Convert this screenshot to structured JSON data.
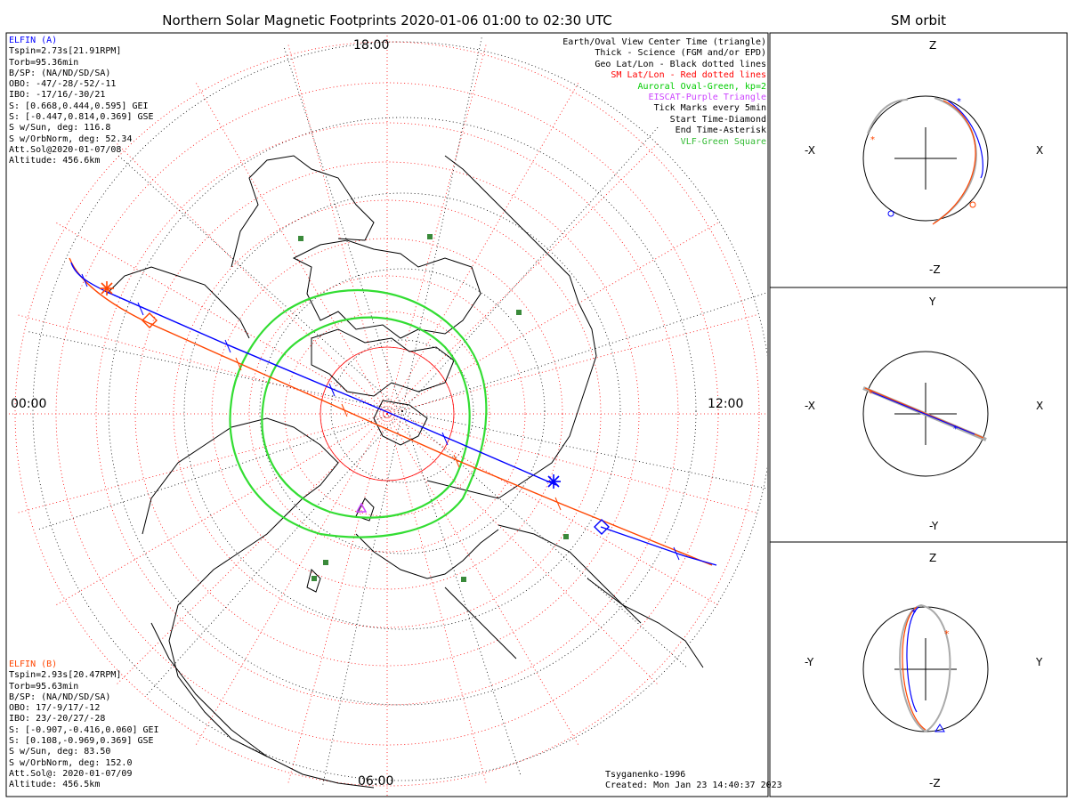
{
  "title": "Northern Solar Magnetic Footprints 2020-01-06 01:00 to 02:30 UTC",
  "orbit_title": "SM orbit",
  "hour_labels": {
    "top": "18:00",
    "left": "00:00",
    "right": "12:00",
    "bottom": "06:00"
  },
  "elfin_a": {
    "name": "ELFIN (A)",
    "color": "#0000ff",
    "lines": [
      "Tspin=2.73s[21.91RPM]",
      "Torb=95.36min",
      "B/SP: (NA/ND/SD/SA)",
      "OBO: -47/-28/-52/-11",
      "IBO: -17/16/-30/21",
      "S: [0.668,0.444,0.595] GEI",
      "S: [-0.447,0.814,0.369] GSE",
      "S w/Sun, deg: 116.8",
      "S w/OrbNorm, deg: 52.34",
      "Att.Sol@2020-01-07/08",
      "Altitude: 456.6km"
    ]
  },
  "elfin_b": {
    "name": "ELFIN (B)",
    "color": "#ff4500",
    "lines": [
      "Tspin=2.93s[20.47RPM]",
      "Torb=95.63min",
      "B/SP: (NA/ND/SD/SA)",
      "OBO: 17/-9/17/-12",
      "IBO: 23/-20/27/-28",
      "S: [-0.907,-0.416,0.060] GEI",
      "S: [0.108,-0.969,0.369] GSE",
      "S w/Sun, deg: 83.50",
      "S w/OrbNorm, deg: 152.0",
      "Att.Sol@: 2020-01-07/09",
      "Altitude: 456.5km"
    ]
  },
  "legend": [
    {
      "text": "Earth/Oval View Center Time (triangle)",
      "color": "#000000"
    },
    {
      "text": "Thick - Science (FGM and/or EPD)",
      "color": "#000000"
    },
    {
      "text": "Geo Lat/Lon - Black dotted lines",
      "color": "#000000"
    },
    {
      "text": "SM Lat/Lon - Red dotted lines",
      "color": "#ff0000"
    },
    {
      "text": "Auroral Oval-Green, kp=2",
      "color": "#00cc00"
    },
    {
      "text": "EISCAT-Purple Triangle",
      "color": "#cc44ff"
    },
    {
      "text": "Tick Marks every 5min",
      "color": "#000000"
    },
    {
      "text": "Start Time-Diamond",
      "color": "#000000"
    },
    {
      "text": "End Time-Asterisk",
      "color": "#000000"
    },
    {
      "text": "VLF-Green Square",
      "color": "#33bb33"
    }
  ],
  "credits": {
    "model": "Tsyganenko-1996",
    "created": "Created: Mon Jan 23 14:40:37 2023"
  },
  "orbit_panels": [
    {
      "top": "Z",
      "bottom": "-Z",
      "left": "-X",
      "right": "X"
    },
    {
      "top": "Y",
      "bottom": "-Y",
      "left": "-X",
      "right": "X"
    },
    {
      "top": "Z",
      "bottom": "-Z",
      "left": "-Y",
      "right": "Y"
    }
  ],
  "colors": {
    "elfin_a": "#0000ff",
    "elfin_b": "#ff4500",
    "sm_grid": "#ff0000",
    "auroral_oval": "#33dd33",
    "eiscat": "#cc44ff",
    "vlf": "#3a8a3a"
  }
}
